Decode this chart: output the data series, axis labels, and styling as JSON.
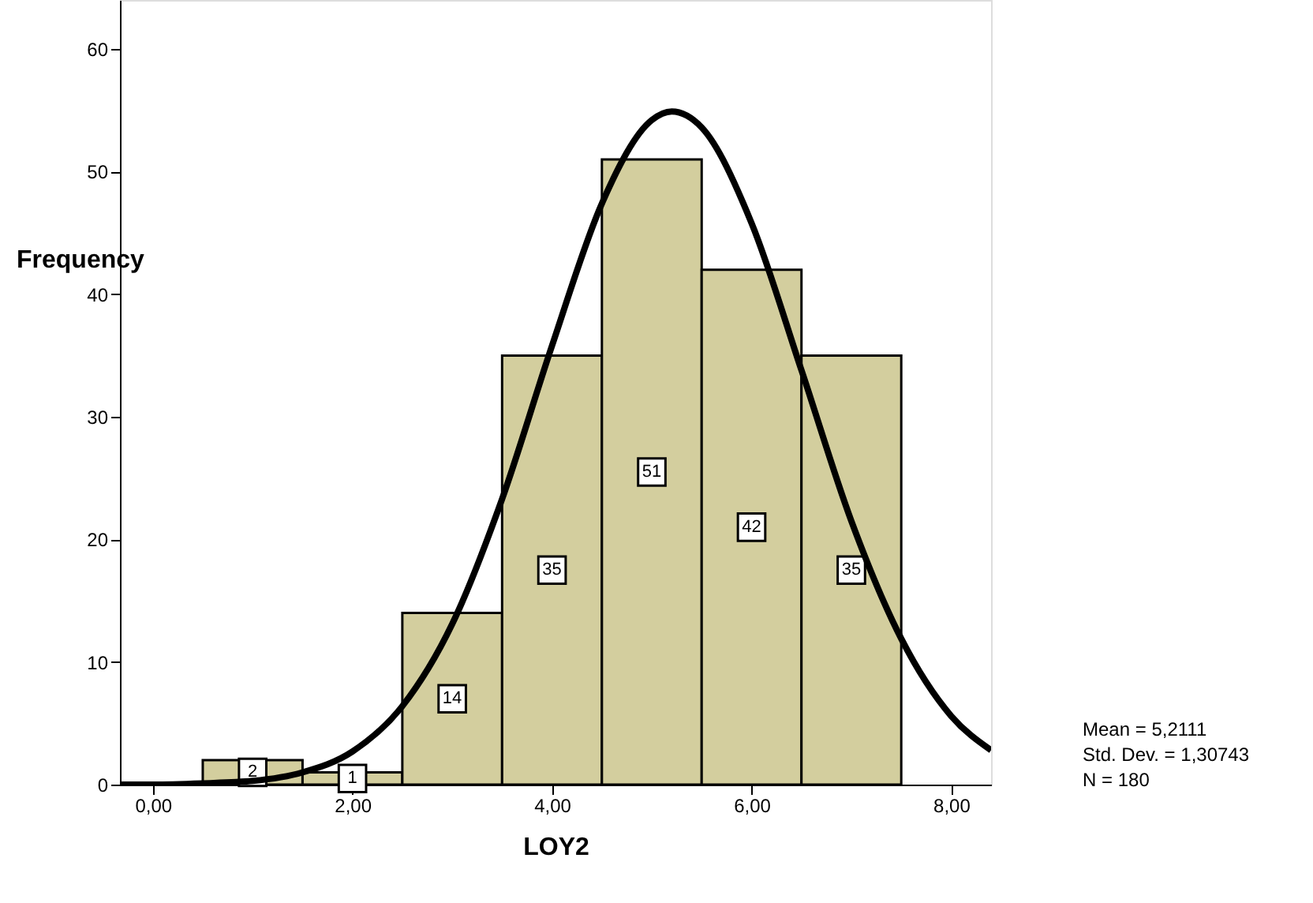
{
  "chart_data": {
    "type": "histogram",
    "xlabel": "LOY2",
    "ylabel": "Frequency",
    "bins": [
      0.5,
      1.5,
      2.5,
      3.5,
      4.5,
      5.5,
      6.5,
      7.5
    ],
    "values": [
      2,
      1,
      14,
      35,
      51,
      42,
      35
    ],
    "color": "#d3ce9e",
    "value_labels": [
      "2",
      "1",
      "14",
      "35",
      "51",
      "42",
      "35"
    ],
    "series": [
      {
        "type": "line",
        "color": "#000000",
        "x": [
          -0.33,
          0,
          0.5,
          1,
          1.5,
          2,
          2.5,
          3,
          3.5,
          4,
          4.5,
          5,
          5.2,
          5.5,
          6,
          6.5,
          7,
          7.5,
          8,
          8.4
        ],
        "values": [
          0,
          0,
          0.1,
          0.3,
          1,
          2.7,
          6.4,
          13.1,
          23.3,
          35.8,
          47.4,
          54.2,
          54.9,
          53.6,
          45.8,
          33.8,
          21.5,
          11.9,
          5.6,
          2.8
        ]
      }
    ],
    "xlim": [
      -0.33,
      8.4
    ],
    "xticks": [
      {
        "value": 0,
        "label": "0,00"
      },
      {
        "value": 2,
        "label": "2,00"
      },
      {
        "value": 4,
        "label": "4,00"
      },
      {
        "value": 6,
        "label": "6,00"
      },
      {
        "value": 8,
        "label": "8,00"
      }
    ],
    "ylim": [
      0,
      64
    ],
    "yticks": [
      0,
      10,
      20,
      30,
      40,
      50,
      60
    ],
    "grid": false,
    "annotations": [
      "Mean = 5,2111",
      "Std. Dev. = 1,30743",
      "N = 180"
    ]
  }
}
